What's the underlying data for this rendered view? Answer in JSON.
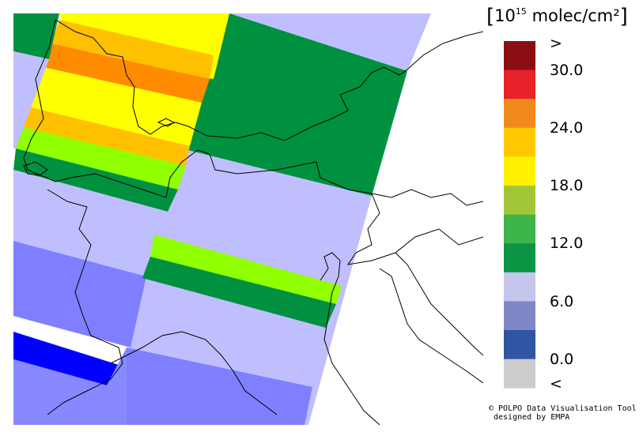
{
  "legend": {
    "unit_prefix": "[",
    "unit_base": "10",
    "unit_exponent": "15",
    "unit_rest": " molec/cm²",
    "unit_suffix": "]",
    "over_label": ">",
    "under_label": "<",
    "tick_labels": [
      "30.0",
      "24.0",
      "18.0",
      "12.0",
      "6.0",
      "0.0"
    ],
    "colors": [
      "#8b0f12",
      "#e8222b",
      "#f08a1c",
      "#ffc700",
      "#fff200",
      "#a3c639",
      "#3db54a",
      "#0b9444",
      "#c6c5ec",
      "#7f86c6",
      "#2f55a4",
      "#cccccc"
    ],
    "over_color": "#8b0f12",
    "under_color": "#cccccc"
  },
  "credit": {
    "line1": "© POLPO Data Visualisation Tool",
    "line2": "designed by EMPA"
  },
  "map": {
    "colors": {
      "dark_green": "#009140",
      "yellow": "#ffff00",
      "orange_light": "#ffc000",
      "orange": "#ff8c00",
      "lime": "#90ff00",
      "lavender": "#bfbfff",
      "blue_mid": "#7f7fff",
      "blue_mid2": "#8888ff",
      "blue_deep": "#0000ff"
    }
  }
}
